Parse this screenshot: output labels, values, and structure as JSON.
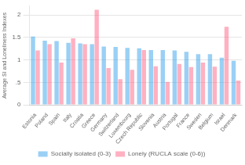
{
  "chart_data": {
    "type": "bar",
    "categories": [
      "Estonia",
      "Poland",
      "Spain",
      "Italy",
      "Croatia",
      "Greece",
      "Germany",
      "Switzerland",
      "Luxembourg",
      "Czech Republic",
      "Slovenia",
      "Austria",
      "Portugal",
      "France",
      "Sweden",
      "Belgium",
      "Israel",
      "Denmark"
    ],
    "series": [
      {
        "name": "Socially isolated (0-3)",
        "values": [
          1.52,
          1.43,
          1.42,
          1.38,
          1.37,
          1.35,
          1.3,
          1.29,
          1.27,
          1.26,
          1.22,
          1.22,
          1.21,
          1.18,
          1.13,
          1.13,
          1.05,
          0.98
        ]
      },
      {
        "name": "Lonely (RUCLA scale (0-6))",
        "values": [
          1.21,
          1.35,
          0.94,
          1.48,
          1.35,
          2.12,
          0.82,
          0.57,
          0.78,
          1.22,
          0.86,
          0.51,
          0.91,
          0.84,
          0.94,
          0.85,
          1.74,
          0.54
        ]
      }
    ],
    "ylabel": "Average SI and Loneliness Indexes",
    "ylim": [
      0,
      2.2
    ],
    "yticks": [
      0,
      {
        "value": 0.5,
        "label": ".5"
      },
      1,
      1.5,
      2
    ],
    "grid": true,
    "legend": "bottom"
  }
}
